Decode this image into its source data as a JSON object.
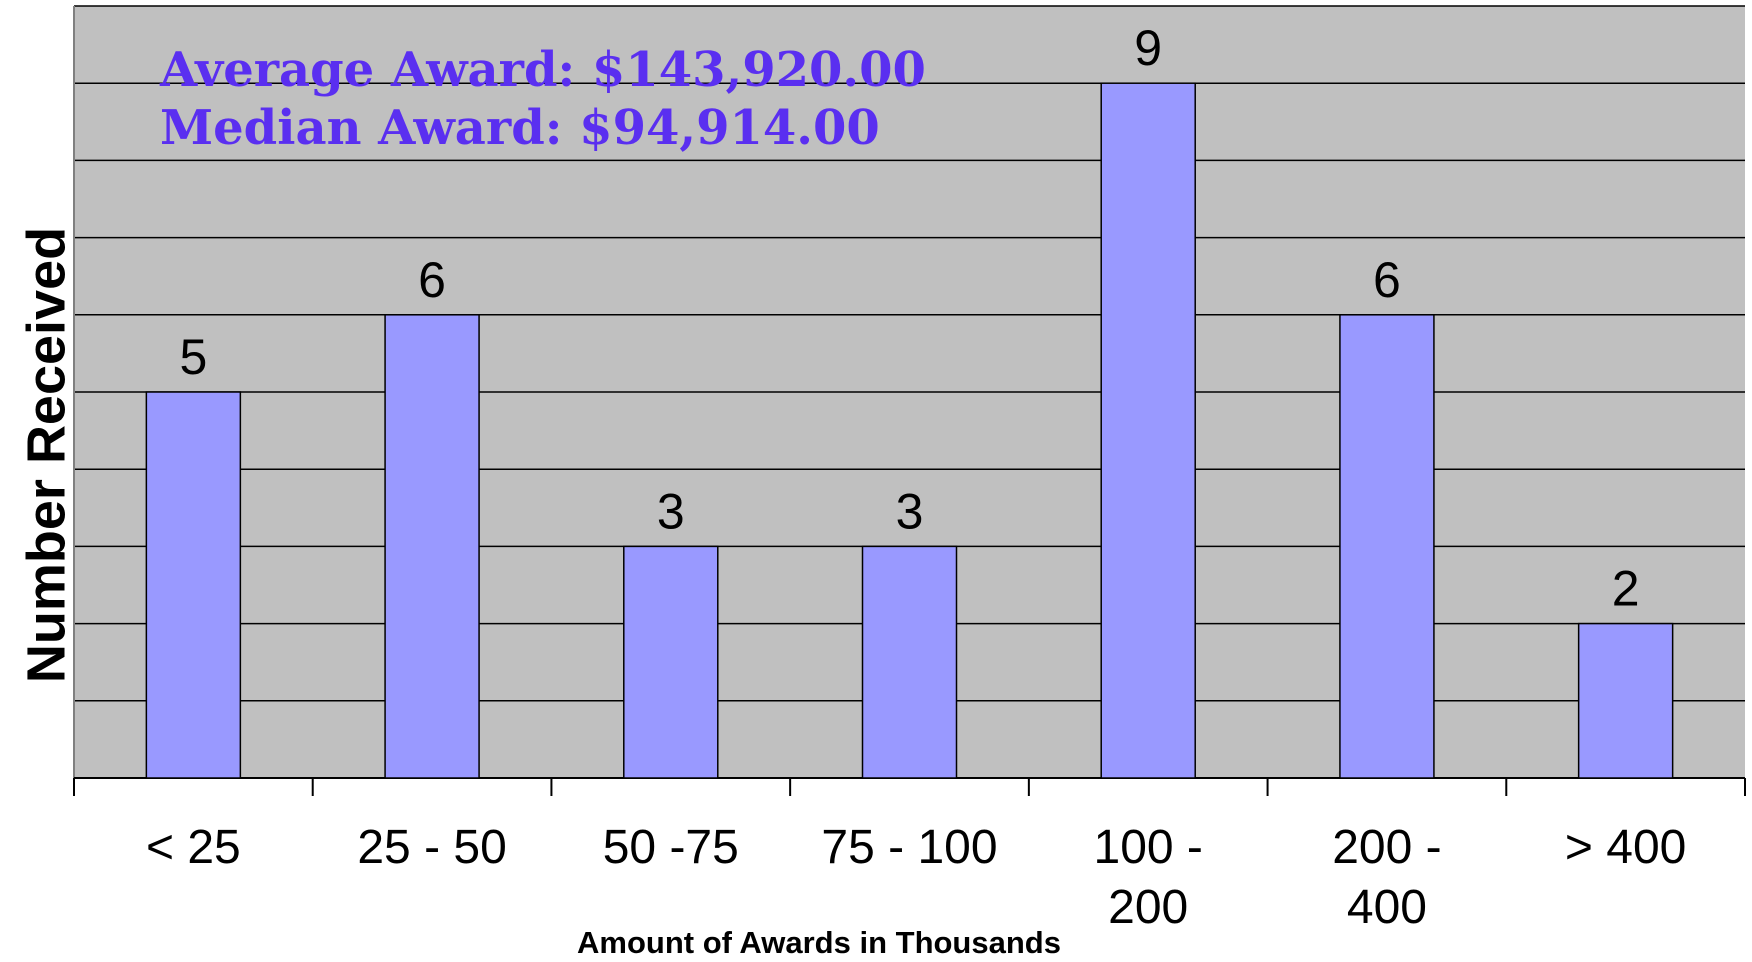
{
  "chart_data": {
    "type": "bar",
    "categories": [
      "< 25",
      "25 - 50",
      "50 -75",
      "75 - 100",
      "100 - 200",
      "200 - 400",
      "> 400"
    ],
    "values": [
      5,
      6,
      3,
      3,
      9,
      6,
      2
    ],
    "color": "#9999ff",
    "ylim": [
      0,
      10
    ],
    "yticks": [
      0,
      1,
      2,
      3,
      4,
      5,
      6,
      7,
      8,
      9,
      10
    ],
    "grid": true,
    "y_label": "Number Received",
    "x_label": "Amount of Awards in Thousands",
    "annotations": [
      "Average Award: $143,920.00",
      "Median Award: $94,914.00"
    ],
    "annotation_color": "#5a2ff0"
  }
}
